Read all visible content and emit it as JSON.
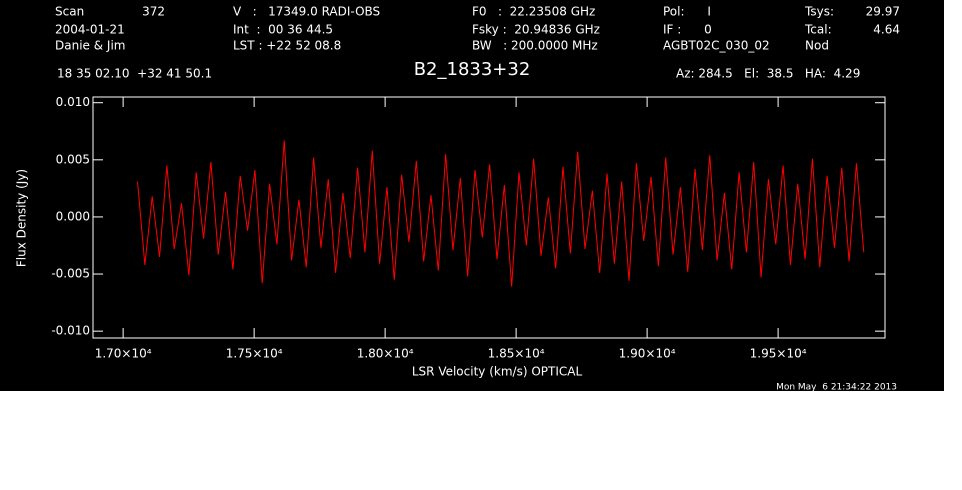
{
  "chart_data": {
    "type": "line",
    "title": "B2_1833+32",
    "xlabel": "LSR Velocity (km/s) OPTICAL",
    "ylabel": "Flux Density (Jy)",
    "annotations": [
      "Scan",
      "372",
      "2004-01-21",
      "Danie & Jim",
      "V   :   17349.0 RADI-OBS",
      "Int  :  00 36 44.5",
      "LST : +22 52 08.8",
      "F0   :  22.23508 GHz",
      "Fsky :  20.94836 GHz",
      "BW   : 200.0000 MHz",
      "Pol:      I",
      "IF :      0",
      "AGBT02C_030_02",
      "Tsys:",
      "29.97",
      "Tcal:",
      "4.64",
      "Nod",
      "18 35 02.10  +32 41 50.1",
      "Az: 284.5   El:  38.5   HA:  4.29",
      "Mon May  6 21:34:22 2013"
    ],
    "xlim": [
      16885,
      19908
    ],
    "ylim": [
      -0.0106,
      0.0105
    ],
    "xticks": [
      {
        "value": 17000,
        "label": "1.70×10⁴"
      },
      {
        "value": 17500,
        "label": "1.75×10⁴"
      },
      {
        "value": 18000,
        "label": "1.80×10⁴"
      },
      {
        "value": 18500,
        "label": "1.85×10⁴"
      },
      {
        "value": 19000,
        "label": "1.90×10⁴"
      },
      {
        "value": 19500,
        "label": "1.95×10⁴"
      }
    ],
    "yticks": [
      {
        "value": 0.01,
        "label": "0.010"
      },
      {
        "value": 0.005,
        "label": "0.005"
      },
      {
        "value": 0,
        "label": "0.000"
      },
      {
        "value": -0.005,
        "label": "-0.005"
      },
      {
        "value": -0.01,
        "label": "-0.010"
      }
    ],
    "x": [
      17055,
      17083,
      17111,
      17139,
      17167,
      17195,
      17223,
      17251,
      17279,
      17307,
      17335,
      17363,
      17391,
      17419,
      17447,
      17475,
      17503,
      17531,
      17559,
      17587,
      17615,
      17643,
      17671,
      17699,
      17727,
      17755,
      17783,
      17811,
      17839,
      17867,
      17895,
      17923,
      17951,
      17979,
      18007,
      18035,
      18063,
      18091,
      18119,
      18147,
      18175,
      18203,
      18231,
      18259,
      18287,
      18315,
      18343,
      18371,
      18399,
      18427,
      18455,
      18483,
      18511,
      18539,
      18567,
      18595,
      18623,
      18651,
      18679,
      18707,
      18735,
      18763,
      18791,
      18819,
      18847,
      18875,
      18903,
      18931,
      18959,
      18987,
      19015,
      19043,
      19071,
      19099,
      19127,
      19155,
      19183,
      19211,
      19239,
      19267,
      19295,
      19323,
      19351,
      19379,
      19407,
      19435,
      19463,
      19491,
      19519,
      19547,
      19575,
      19603,
      19631,
      19659,
      19687,
      19715,
      19743,
      19771,
      19799,
      19827
    ],
    "series": [
      {
        "color": "#ff0000",
        "values": [
          0.0031,
          -0.0042,
          0.0018,
          -0.0035,
          0.0045,
          -0.0028,
          0.0012,
          -0.0051,
          0.0039,
          -0.0019,
          0.0048,
          -0.0033,
          0.0022,
          -0.0046,
          0.0036,
          -0.0012,
          0.0041,
          -0.0058,
          0.0029,
          -0.0024,
          0.0067,
          -0.0038,
          0.0015,
          -0.0044,
          0.0052,
          -0.0027,
          0.0033,
          -0.0049,
          0.0021,
          -0.0036,
          0.0043,
          -0.0031,
          0.0058,
          -0.0041,
          0.0026,
          -0.0055,
          0.0037,
          -0.0022,
          0.0049,
          -0.0039,
          0.0019,
          -0.0047,
          0.0055,
          -0.0029,
          0.0034,
          -0.0052,
          0.0041,
          -0.0018,
          0.0046,
          -0.0037,
          0.0028,
          -0.0061,
          0.0039,
          -0.0025,
          0.0051,
          -0.0034,
          0.0017,
          -0.0045,
          0.0044,
          -0.0032,
          0.0057,
          -0.0028,
          0.0023,
          -0.0049,
          0.0038,
          -0.0041,
          0.0031,
          -0.0056,
          0.0047,
          -0.0021,
          0.0035,
          -0.0043,
          0.0052,
          -0.0033,
          0.0026,
          -0.0048,
          0.0042,
          -0.0029,
          0.0054,
          -0.0038,
          0.0021,
          -0.0046,
          0.0039,
          -0.0031,
          0.0048,
          -0.0053,
          0.0033,
          -0.0024,
          0.0045,
          -0.0042,
          0.0029,
          -0.0037,
          0.0051,
          -0.0044,
          0.0036,
          -0.0027,
          0.0043,
          -0.0039,
          0.0047,
          -0.0031
        ]
      }
    ]
  }
}
